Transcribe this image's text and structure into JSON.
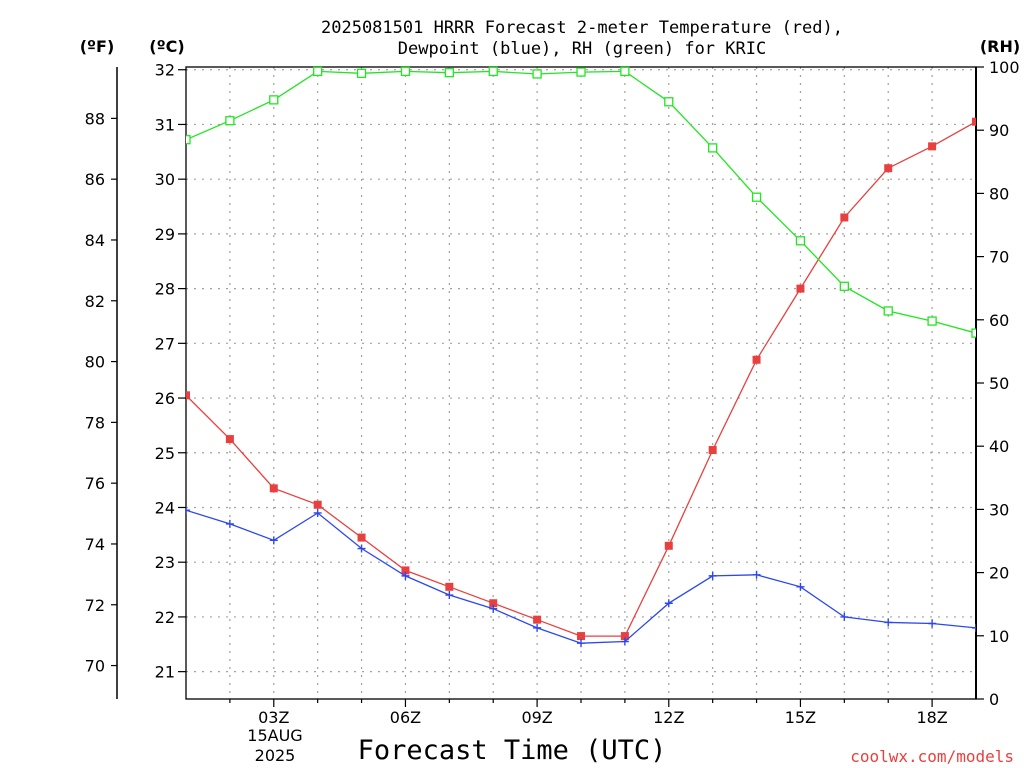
{
  "title_line1": "2025081501 HRRR Forecast 2-meter Temperature (red),",
  "title_line2": "Dewpoint (blue), RH (green) for KRIC",
  "units": {
    "fahrenheit": "(ºF)",
    "celsius": "(ºC)",
    "rh": "(RH)"
  },
  "credit": "coolwx.com/models",
  "date_label": {
    "day": "15AUG",
    "year": "2025"
  },
  "chart_data": {
    "type": "line",
    "xlabel": "Forecast Time (UTC)",
    "x_hours": [
      1,
      2,
      3,
      4,
      5,
      6,
      7,
      8,
      9,
      10,
      11,
      12,
      13,
      14,
      15,
      16,
      17,
      18,
      19
    ],
    "xlim": [
      1,
      19
    ],
    "x_ticks": [
      {
        "hour": 3,
        "label": "03Z"
      },
      {
        "hour": 6,
        "label": "06Z"
      },
      {
        "hour": 9,
        "label": "09Z"
      },
      {
        "hour": 12,
        "label": "12Z"
      },
      {
        "hour": 15,
        "label": "15Z"
      },
      {
        "hour": 18,
        "label": "18Z"
      }
    ],
    "ylim_celsius": [
      20.5,
      32.05
    ],
    "celsius_ticks": [
      21,
      22,
      23,
      24,
      25,
      26,
      27,
      28,
      29,
      30,
      31,
      32
    ],
    "fahrenheit_ticks": [
      70,
      72,
      74,
      76,
      78,
      80,
      82,
      84,
      86,
      88
    ],
    "ylim_rh": [
      0,
      100
    ],
    "rh_ticks": [
      0,
      10,
      20,
      30,
      40,
      50,
      60,
      70,
      80,
      90,
      100
    ],
    "grid": true,
    "series": [
      {
        "name": "Temperature",
        "color": "#e8403e",
        "marker": "filled-square",
        "axis": "celsius",
        "values": [
          26.05,
          25.25,
          24.35,
          24.05,
          23.45,
          22.85,
          22.55,
          22.25,
          21.95,
          21.65,
          21.65,
          23.3,
          25.05,
          26.7,
          28.0,
          29.3,
          30.2,
          30.6,
          31.05
        ]
      },
      {
        "name": "Dewpoint",
        "color": "#2c47f0",
        "marker": "plus",
        "axis": "celsius",
        "values": [
          23.95,
          23.7,
          23.4,
          23.9,
          23.25,
          22.75,
          22.4,
          22.15,
          21.8,
          21.52,
          21.55,
          22.25,
          22.75,
          22.77,
          22.55,
          22.0,
          21.9,
          21.88,
          21.8
        ]
      },
      {
        "name": "RH",
        "color": "#22e622",
        "marker": "open-square",
        "axis": "rh",
        "values": [
          88.5,
          91.5,
          94.8,
          99.3,
          99.0,
          99.3,
          99.1,
          99.3,
          98.9,
          99.2,
          99.3,
          94.5,
          87.2,
          79.4,
          72.5,
          65.3,
          61.4,
          59.8,
          57.9
        ]
      }
    ]
  }
}
